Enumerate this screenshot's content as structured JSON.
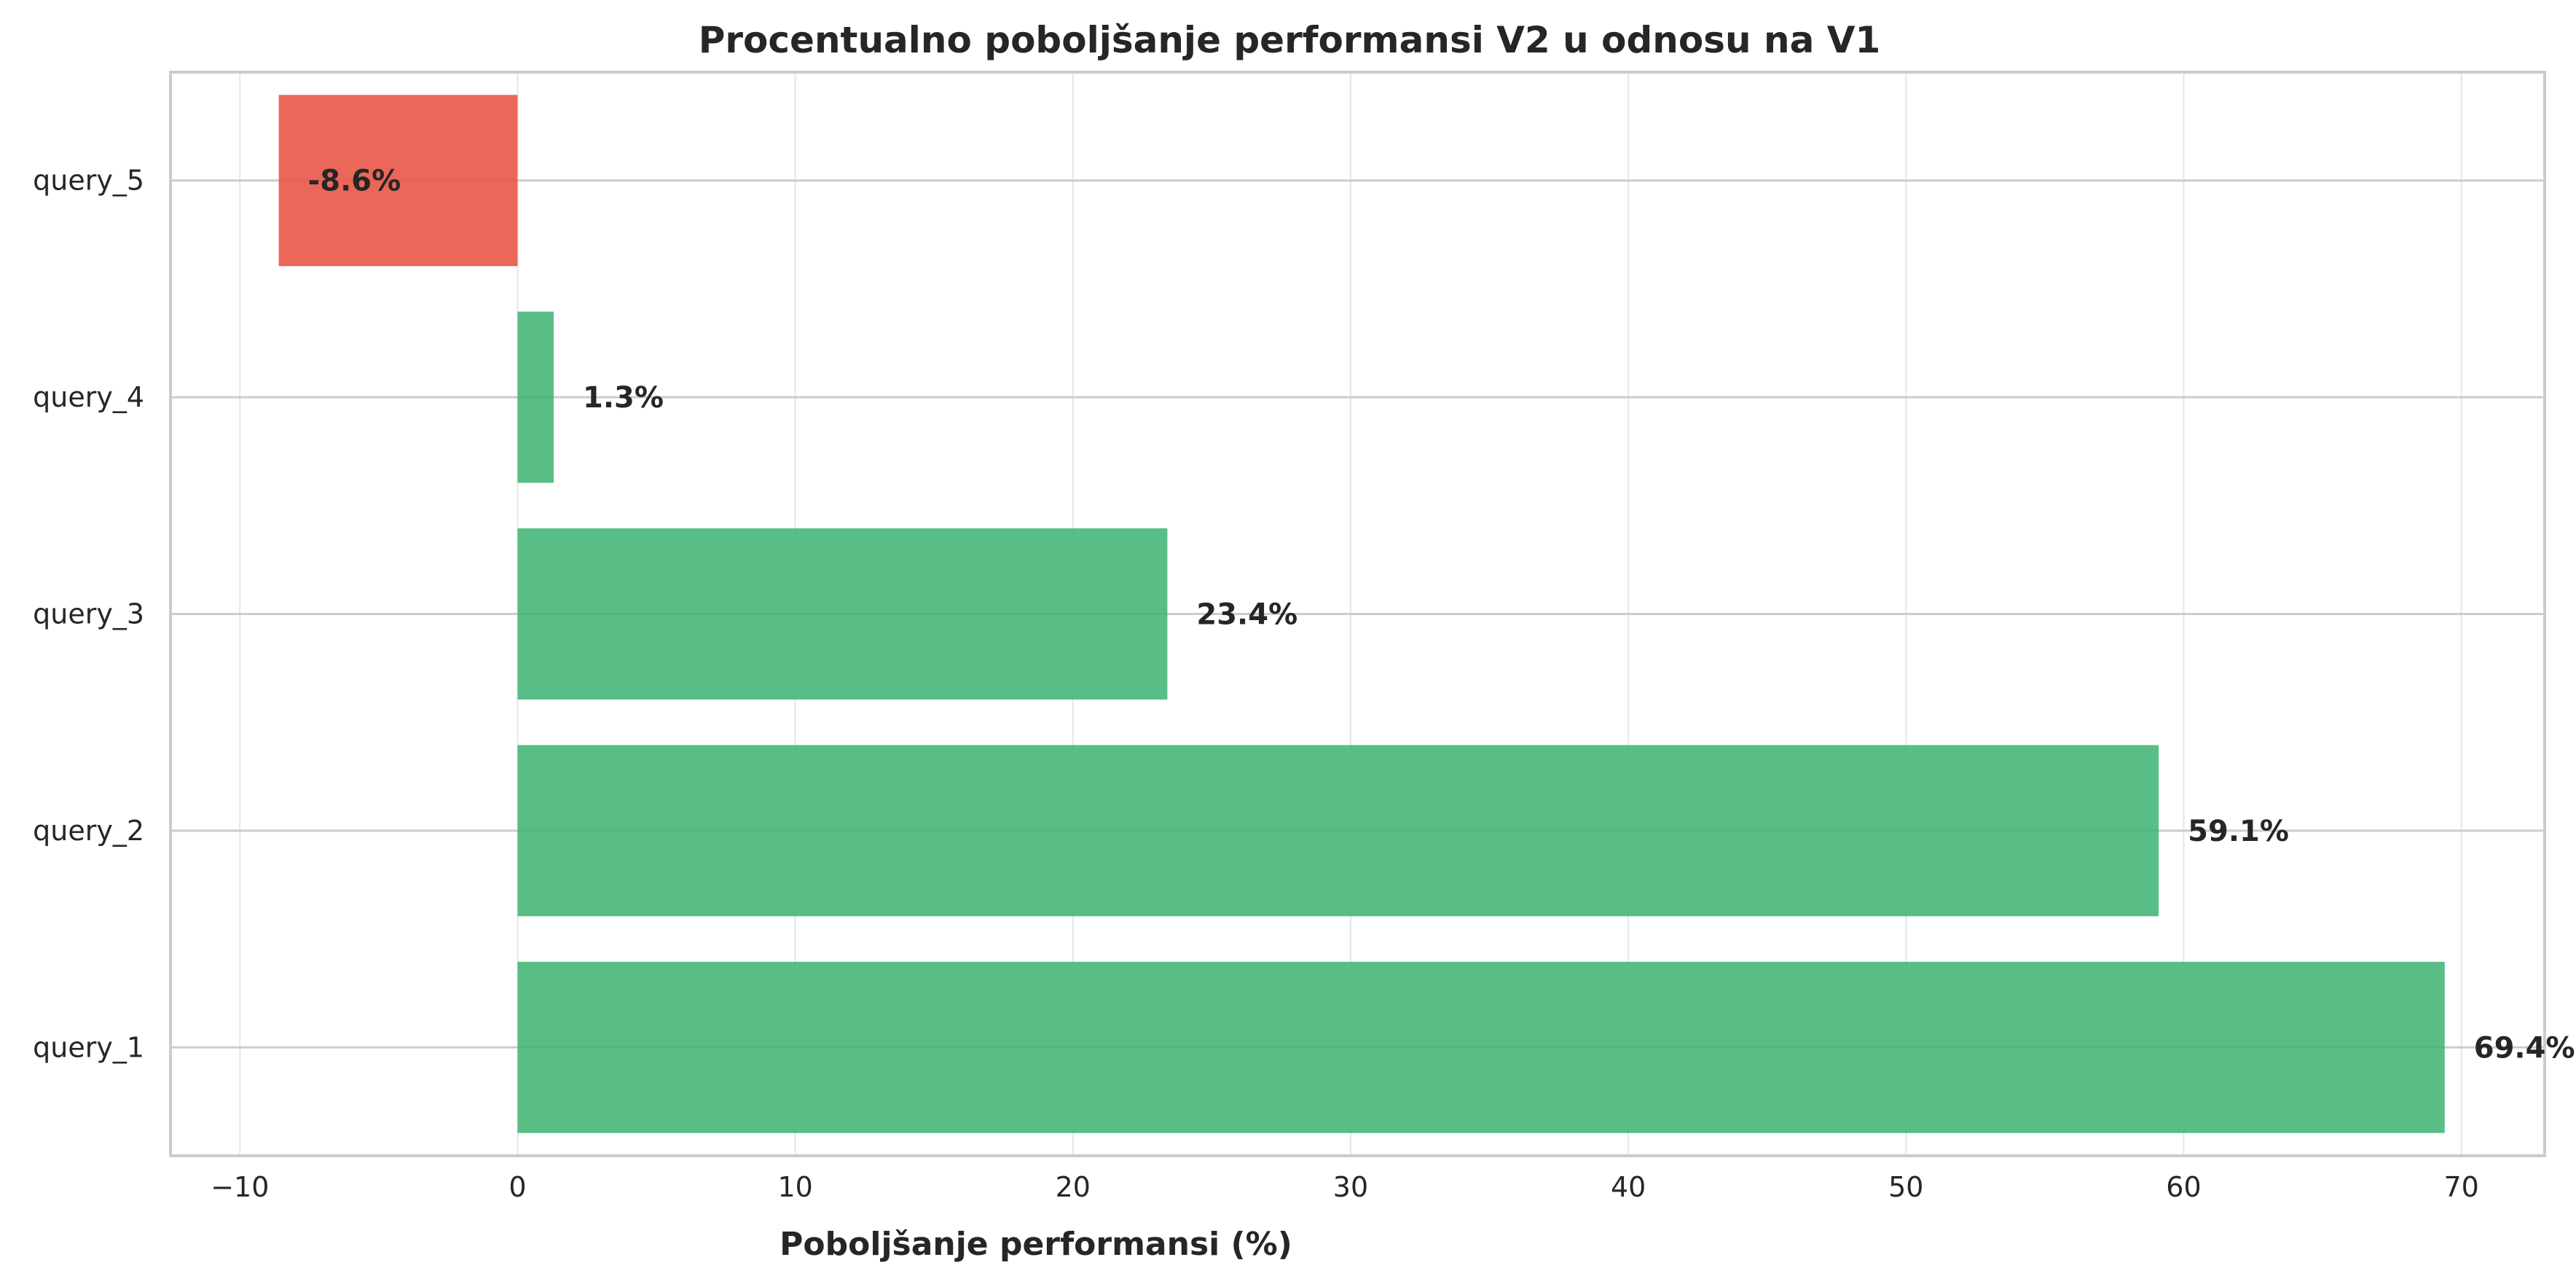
{
  "chart_data": {
    "type": "bar",
    "orientation": "horizontal",
    "title": "Procentualno poboljšanje performansi V2 u odnosu na V1",
    "xlabel": "Poboljšanje performansi (%)",
    "ylabel": "",
    "categories": [
      "query_1",
      "query_2",
      "query_3",
      "query_4",
      "query_5"
    ],
    "values": [
      69.4,
      59.1,
      23.4,
      1.3,
      -8.6
    ],
    "value_labels": [
      "69.4%",
      "59.1%",
      "23.4%",
      "1.3%",
      "-8.6%"
    ],
    "xlim": [
      -12.5,
      73.0
    ],
    "xticks": [
      -10,
      0,
      10,
      20,
      30,
      40,
      50,
      60,
      70
    ],
    "xtick_labels": [
      "−10",
      "0",
      "10",
      "20",
      "30",
      "40",
      "50",
      "60",
      "70"
    ],
    "grid": true,
    "legend": "none",
    "colors": {
      "positive": "#3cb371",
      "negative": "#e74c3c"
    }
  }
}
